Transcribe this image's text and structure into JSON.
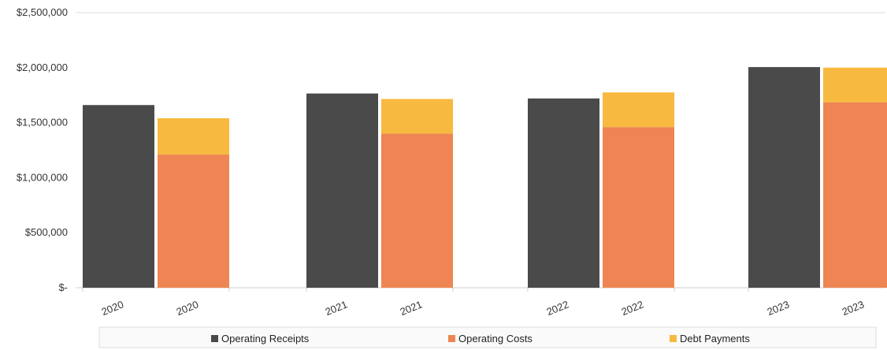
{
  "chart_data": {
    "type": "bar",
    "stacked_right_bar": true,
    "groups": [
      "2020",
      "2021",
      "2022",
      "2023"
    ],
    "x_tick_labels": [
      "2020",
      "2020",
      "2021",
      "2021",
      "2022",
      "2022",
      "2023",
      "2023"
    ],
    "series": [
      {
        "name": "Operating Receipts",
        "values": [
          1660000,
          1765000,
          1720000,
          2005000
        ],
        "color": "#4a4a4a"
      },
      {
        "name": "Operating Costs",
        "values": [
          1210000,
          1400000,
          1460000,
          1685000
        ],
        "color": "#ee8553"
      },
      {
        "name": "Debt Payments",
        "values": [
          330000,
          315000,
          315000,
          315000
        ],
        "color": "#f7b93f"
      }
    ],
    "y_ticks": [
      "$2,500,000",
      "$2,000,000",
      "$1,500,000",
      "$1,000,000",
      "$500,000",
      "$-"
    ],
    "y_tick_values": [
      2500000,
      2000000,
      1500000,
      1000000,
      500000,
      0
    ],
    "ylim": [
      0,
      2500000
    ],
    "grid": false,
    "legend_position": "bottom"
  }
}
